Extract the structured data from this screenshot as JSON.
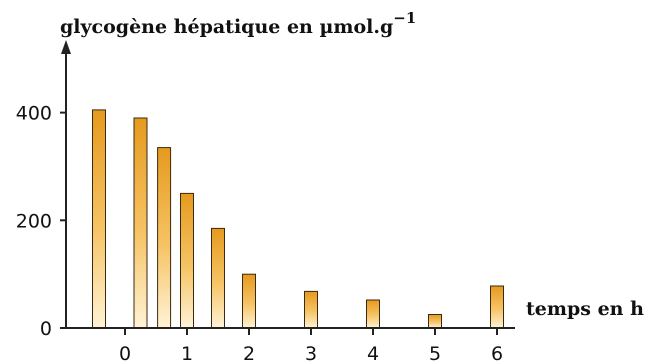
{
  "chart_data": {
    "type": "bar",
    "ylabel": "glycogène hépatique en µmol.g",
    "ylabel_exponent": "−1",
    "xlabel": "temps en h",
    "ylim": [
      0,
      520
    ],
    "xlim": [
      -1,
      6.5
    ],
    "y_ticks": [
      0,
      200,
      400
    ],
    "x_ticks": [
      0,
      1,
      2,
      3,
      4,
      5,
      6
    ],
    "grid": false,
    "bar_color_top": "#e69a1e",
    "bar_color_bottom": "#fff3d6",
    "bar_edge": "#3a2a10",
    "series": [
      {
        "x": [
          -0.42,
          0.25,
          0.63,
          1.0,
          1.5,
          2.0,
          3.0,
          4.0,
          5.0,
          6.0
        ],
        "values": [
          405,
          390,
          335,
          250,
          185,
          100,
          68,
          52,
          25,
          78
        ]
      }
    ]
  }
}
